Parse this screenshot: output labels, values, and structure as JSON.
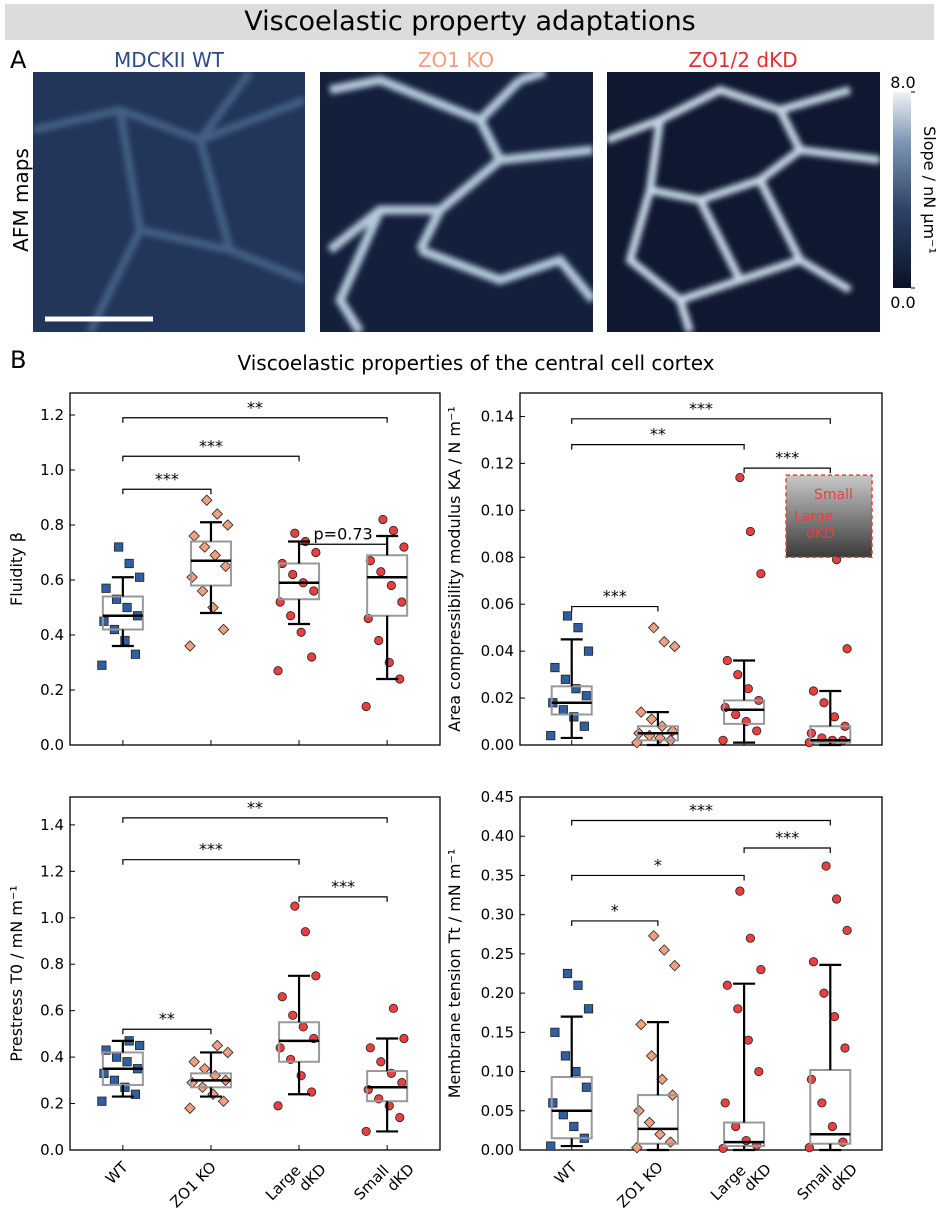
{
  "title": "Viscoelastic property adaptations",
  "panel_a": {
    "label": "A",
    "row_label": "AFM maps",
    "maps": [
      {
        "title": "MDCKII WT",
        "color": "#2e4a8a"
      },
      {
        "title": "ZO1 KO",
        "color": "#f0a080"
      },
      {
        "title": "ZO1/2 dKD",
        "color": "#e03030"
      }
    ],
    "colorbar": {
      "label": "Slope / nN µm⁻¹",
      "lim": [
        0,
        8
      ],
      "ticks": [
        {
          "value": 0,
          "label": "0.0"
        },
        {
          "value": 8,
          "label": "8.0"
        }
      ]
    }
  },
  "panel_b": {
    "label": "B",
    "title": "Viscoelastic properties of the central cell cortex"
  },
  "chart_data": [
    {
      "type": "box",
      "ylabel": "Fluidity β",
      "ylim": [
        0,
        1.28
      ],
      "yticks": [
        {
          "value": 0,
          "label": "0.0"
        },
        0.2,
        0.4,
        0.6,
        0.8,
        {
          "value": 1,
          "label": "1.0"
        },
        1.2
      ],
      "colors": [
        "#2f5f9e",
        "#f0a07e",
        "#e8403f",
        "#e8403f"
      ],
      "markers": [
        "square",
        "diamond",
        "circle",
        "circle"
      ],
      "boxes": [
        {
          "whislo": 0.36,
          "q1": 0.42,
          "med": 0.47,
          "q3": 0.54,
          "whishi": 0.61,
          "points": [
            0.29,
            0.33,
            0.38,
            0.42,
            0.45,
            0.47,
            0.5,
            0.53,
            0.57,
            0.61,
            0.66,
            0.72
          ]
        },
        {
          "whislo": 0.48,
          "q1": 0.58,
          "med": 0.67,
          "q3": 0.74,
          "whishi": 0.81,
          "points": [
            0.36,
            0.42,
            0.5,
            0.56,
            0.61,
            0.65,
            0.69,
            0.72,
            0.76,
            0.8,
            0.84,
            0.89
          ]
        },
        {
          "whislo": 0.44,
          "q1": 0.53,
          "med": 0.59,
          "q3": 0.66,
          "whishi": 0.74,
          "points": [
            0.27,
            0.32,
            0.41,
            0.47,
            0.52,
            0.56,
            0.59,
            0.62,
            0.66,
            0.7,
            0.74,
            0.77
          ]
        },
        {
          "whislo": 0.24,
          "q1": 0.47,
          "med": 0.61,
          "q3": 0.69,
          "whishi": 0.76,
          "points": [
            0.14,
            0.24,
            0.3,
            0.38,
            0.46,
            0.52,
            0.58,
            0.63,
            0.67,
            0.72,
            0.78,
            0.82
          ]
        }
      ],
      "brackets": [
        {
          "from": 0,
          "to": 3,
          "y": 1.19,
          "label": "**"
        },
        {
          "from": 0,
          "to": 2,
          "y": 1.05,
          "label": "***"
        },
        {
          "from": 0,
          "to": 1,
          "y": 0.93,
          "label": "***"
        },
        {
          "from": 2,
          "to": 3,
          "y": 0.73,
          "label": "p=0.73"
        }
      ]
    },
    {
      "type": "box",
      "ylabel": "Area compressibility modulus KA / N m⁻¹",
      "ylim": [
        0,
        0.15
      ],
      "yticks": [
        {
          "value": 0,
          "label": "0.00"
        },
        {
          "value": 0.02,
          "label": "0.02"
        },
        {
          "value": 0.04,
          "label": "0.04"
        },
        {
          "value": 0.06,
          "label": "0.06"
        },
        {
          "value": 0.08,
          "label": "0.08"
        },
        {
          "value": 0.1,
          "label": "0.10"
        },
        {
          "value": 0.12,
          "label": "0.12"
        },
        {
          "value": 0.14,
          "label": "0.14"
        }
      ],
      "colors": [
        "#2f5f9e",
        "#f0a07e",
        "#e8403f",
        "#e8403f"
      ],
      "markers": [
        "square",
        "diamond",
        "circle",
        "circle"
      ],
      "inset": {
        "labels": [
          "Small",
          "Large\ndKD"
        ],
        "color": "#e8403f"
      },
      "boxes": [
        {
          "whislo": 0.003,
          "q1": 0.013,
          "med": 0.018,
          "q3": 0.025,
          "whishi": 0.045,
          "points": [
            0.004,
            0.008,
            0.012,
            0.015,
            0.018,
            0.021,
            0.024,
            0.028,
            0.033,
            0.04,
            0.05,
            0.055
          ]
        },
        {
          "whislo": 0,
          "q1": 0.002,
          "med": 0.005,
          "q3": 0.008,
          "whishi": 0.014,
          "points": [
            0.001,
            0.002,
            0.003,
            0.004,
            0.005,
            0.006,
            0.008,
            0.011,
            0.014,
            0.042,
            0.044,
            0.05
          ]
        },
        {
          "whislo": 0.001,
          "q1": 0.009,
          "med": 0.015,
          "q3": 0.019,
          "whishi": 0.036,
          "points": [
            0.002,
            0.006,
            0.01,
            0.013,
            0.016,
            0.019,
            0.024,
            0.03,
            0.036,
            0.073,
            0.091,
            0.114
          ]
        },
        {
          "whislo": 0,
          "q1": 0.001,
          "med": 0.002,
          "q3": 0.008,
          "whishi": 0.023,
          "points": [
            0.001,
            0.002,
            0.002,
            0.003,
            0.005,
            0.008,
            0.012,
            0.018,
            0.023,
            0.041,
            0.079
          ]
        }
      ],
      "brackets": [
        {
          "from": 0,
          "to": 3,
          "y": 0.139,
          "label": "***"
        },
        {
          "from": 0,
          "to": 2,
          "y": 0.128,
          "label": "**"
        },
        {
          "from": 2,
          "to": 3,
          "y": 0.118,
          "label": "***"
        },
        {
          "from": 0,
          "to": 1,
          "y": 0.059,
          "label": "***"
        }
      ]
    },
    {
      "type": "box",
      "ylabel": "Prestress T0 / mN m⁻¹",
      "ylim": [
        0,
        1.52
      ],
      "yticks": [
        {
          "value": 0,
          "label": "0.0"
        },
        0.2,
        0.4,
        0.6,
        0.8,
        {
          "value": 1,
          "label": "1.0"
        },
        1.2,
        1.4
      ],
      "colors": [
        "#2f5f9e",
        "#f0a07e",
        "#e8403f",
        "#e8403f"
      ],
      "markers": [
        "square",
        "diamond",
        "circle",
        "circle"
      ],
      "categories": [
        "WT",
        "ZO1 KO",
        "Large\ndKD",
        "Small\ndKD"
      ],
      "boxes": [
        {
          "whislo": 0.23,
          "q1": 0.28,
          "med": 0.35,
          "q3": 0.42,
          "whishi": 0.47,
          "points": [
            0.21,
            0.24,
            0.27,
            0.3,
            0.33,
            0.35,
            0.38,
            0.4,
            0.43,
            0.45,
            0.47
          ]
        },
        {
          "whislo": 0.23,
          "q1": 0.27,
          "med": 0.3,
          "q3": 0.33,
          "whishi": 0.42,
          "points": [
            0.18,
            0.21,
            0.24,
            0.27,
            0.29,
            0.3,
            0.32,
            0.35,
            0.38,
            0.42,
            0.45
          ]
        },
        {
          "whislo": 0.24,
          "q1": 0.38,
          "med": 0.47,
          "q3": 0.55,
          "whishi": 0.75,
          "points": [
            0.19,
            0.25,
            0.32,
            0.39,
            0.44,
            0.48,
            0.53,
            0.58,
            0.66,
            0.75,
            0.94,
            1.05
          ]
        },
        {
          "whislo": 0.08,
          "q1": 0.21,
          "med": 0.27,
          "q3": 0.34,
          "whishi": 0.48,
          "points": [
            0.08,
            0.14,
            0.19,
            0.22,
            0.26,
            0.29,
            0.33,
            0.38,
            0.44,
            0.48,
            0.61
          ]
        }
      ],
      "brackets": [
        {
          "from": 0,
          "to": 3,
          "y": 1.43,
          "label": "**"
        },
        {
          "from": 0,
          "to": 2,
          "y": 1.25,
          "label": "***"
        },
        {
          "from": 2,
          "to": 3,
          "y": 1.09,
          "label": "***"
        },
        {
          "from": 0,
          "to": 1,
          "y": 0.52,
          "label": "**"
        }
      ]
    },
    {
      "type": "box",
      "ylabel": "Membrane tension Tt / mN m⁻¹",
      "ylim": [
        0,
        0.45
      ],
      "yticks": [
        {
          "value": 0,
          "label": "0.00"
        },
        0.05,
        {
          "value": 0.1,
          "label": "0.10"
        },
        0.15,
        {
          "value": 0.2,
          "label": "0.20"
        },
        0.25,
        {
          "value": 0.3,
          "label": "0.30"
        },
        0.35,
        {
          "value": 0.4,
          "label": "0.40"
        },
        0.45
      ],
      "colors": [
        "#2f5f9e",
        "#f0a07e",
        "#e8403f",
        "#e8403f"
      ],
      "markers": [
        "square",
        "diamond",
        "circle",
        "circle"
      ],
      "categories": [
        "WT",
        "ZO1 KO",
        "Large\ndKD",
        "Small\ndKD"
      ],
      "boxes": [
        {
          "whislo": 0.005,
          "q1": 0.015,
          "med": 0.05,
          "q3": 0.093,
          "whishi": 0.17,
          "points": [
            0.005,
            0.015,
            0.03,
            0.045,
            0.06,
            0.08,
            0.1,
            0.12,
            0.15,
            0.18,
            0.21,
            0.225
          ]
        },
        {
          "whislo": 0,
          "q1": 0.008,
          "med": 0.027,
          "q3": 0.07,
          "whishi": 0.163,
          "points": [
            0.003,
            0.01,
            0.02,
            0.035,
            0.05,
            0.07,
            0.09,
            0.12,
            0.16,
            0.235,
            0.255,
            0.273
          ]
        },
        {
          "whislo": 0,
          "q1": 0.005,
          "med": 0.01,
          "q3": 0.035,
          "whishi": 0.212,
          "points": [
            0.002,
            0.006,
            0.012,
            0.03,
            0.06,
            0.1,
            0.14,
            0.18,
            0.21,
            0.23,
            0.27,
            0.33
          ]
        },
        {
          "whislo": 0,
          "q1": 0.008,
          "med": 0.02,
          "q3": 0.102,
          "whishi": 0.236,
          "points": [
            0.003,
            0.01,
            0.03,
            0.06,
            0.09,
            0.13,
            0.17,
            0.2,
            0.24,
            0.28,
            0.32,
            0.362
          ]
        }
      ],
      "brackets": [
        {
          "from": 0,
          "to": 3,
          "y": 0.42,
          "label": "***"
        },
        {
          "from": 0,
          "to": 2,
          "y": 0.35,
          "label": "*"
        },
        {
          "from": 2,
          "to": 3,
          "y": 0.385,
          "label": "***"
        },
        {
          "from": 0,
          "to": 1,
          "y": 0.292,
          "label": "*"
        }
      ]
    }
  ]
}
